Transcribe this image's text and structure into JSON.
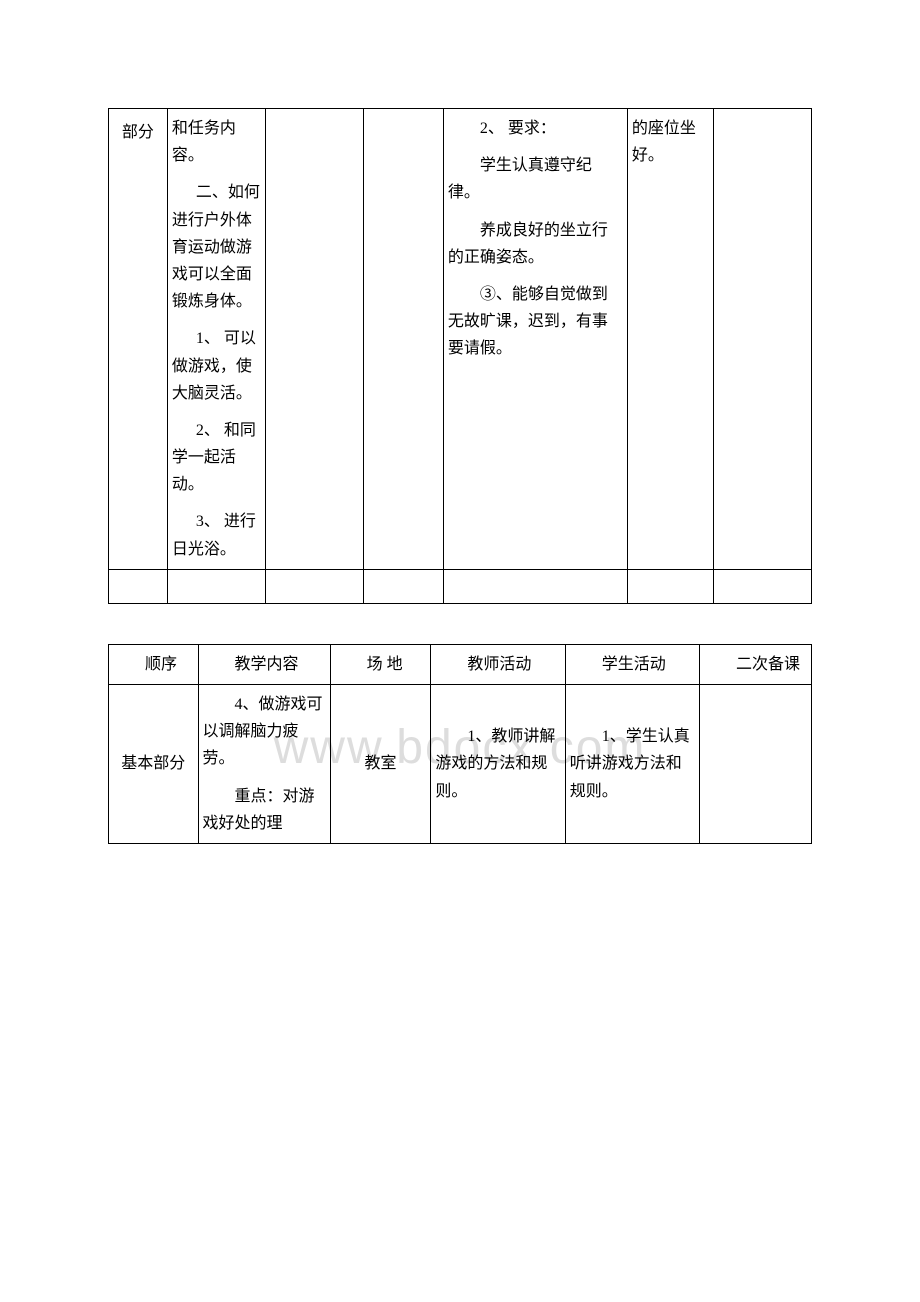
{
  "watermark": "www.bdocx.com",
  "table1": {
    "colA": "部分",
    "colB": {
      "p1": "和任务内容。",
      "p2_indent": "二、如何进行户外体育运动做游戏可以全面锻炼身体。",
      "p3_num": "1、 可以做游戏，使大脑灵活。",
      "p4_num": "2、 和同学一起活动。",
      "p5_num": "3、 进行日光浴。"
    },
    "colE": {
      "p1": "2、 要求：",
      "p2": "学生认真遵守纪律。",
      "p3": "养成良好的坐立行的正确姿态。",
      "p4": "③、能够自觉做到无故旷课，迟到，有事要请假。"
    },
    "colF": "的座位坐好。"
  },
  "table2": {
    "headers": {
      "c1": "顺序",
      "c2": "教学内容",
      "c3": "场 地",
      "c4": "教师活动",
      "c5": "学生活动",
      "c6": "二次备课"
    },
    "row1": {
      "c1": "基本部分",
      "c2_a": "4、做游戏可以调解脑力疲劳。",
      "c2_b": "重点：对游戏好处的理",
      "c3": "教室",
      "c4": "1、教师讲解游戏的方法和规则。",
      "c5": "1、学生认真听讲游戏方法和规则。"
    }
  },
  "colors": {
    "text": "#000000",
    "border": "#000000",
    "bg": "#ffffff",
    "watermark": "#dddddd"
  }
}
